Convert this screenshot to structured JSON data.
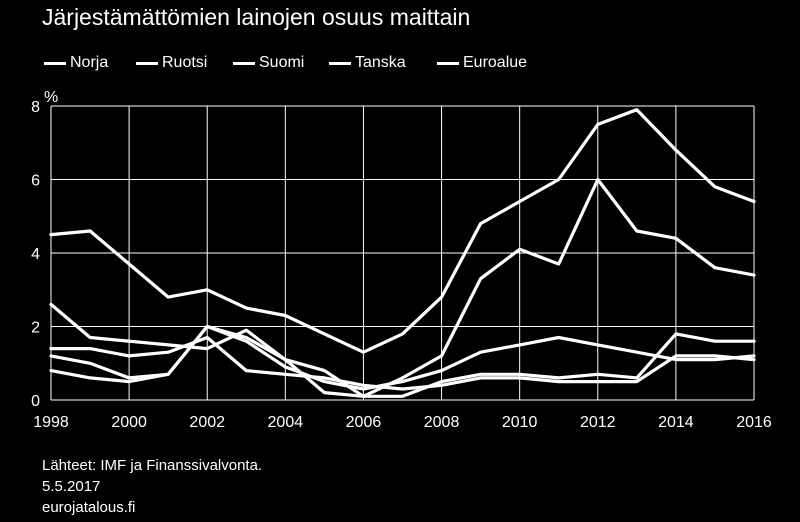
{
  "chart_data": {
    "type": "line",
    "title": "Järjestämättömien lainojen osuus maittain",
    "ylabel": "%",
    "xlabel": "",
    "xlim": [
      1998,
      2016
    ],
    "ylim": [
      0,
      8
    ],
    "x_ticks": [
      "1998",
      "2000",
      "2002",
      "2004",
      "2006",
      "2008",
      "2010",
      "2012",
      "2014",
      "2016"
    ],
    "y_ticks": [
      "0",
      "2",
      "4",
      "6",
      "8"
    ],
    "legend_position": "top",
    "series": [
      {
        "name": "Norja",
        "points": [
          [
            1998,
            0.8
          ],
          [
            1999,
            0.6
          ],
          [
            2000,
            0.5
          ],
          [
            2001,
            0.7
          ],
          [
            2002,
            2.0
          ],
          [
            2003,
            1.6
          ],
          [
            2004,
            0.9
          ],
          [
            2005,
            0.5
          ],
          [
            2006,
            0.3
          ],
          [
            2007,
            0.5
          ],
          [
            2008,
            0.8
          ],
          [
            2009,
            1.3
          ],
          [
            2010,
            1.5
          ],
          [
            2011,
            1.7
          ],
          [
            2012,
            1.5
          ],
          [
            2013,
            1.3
          ],
          [
            2014,
            1.1
          ],
          [
            2015,
            1.1
          ],
          [
            2016,
            1.2
          ]
        ]
      },
      {
        "name": "Ruotsi",
        "points": [
          [
            1998,
            1.4
          ],
          [
            1999,
            1.4
          ],
          [
            2000,
            1.2
          ],
          [
            2001,
            1.3
          ],
          [
            2002,
            1.7
          ],
          [
            2003,
            0.8
          ],
          [
            2004,
            0.7
          ],
          [
            2005,
            0.6
          ],
          [
            2006,
            0.4
          ],
          [
            2007,
            0.3
          ],
          [
            2008,
            0.4
          ],
          [
            2009,
            0.6
          ],
          [
            2010,
            0.6
          ],
          [
            2011,
            0.5
          ],
          [
            2012,
            0.5
          ],
          [
            2013,
            0.5
          ],
          [
            2014,
            1.2
          ],
          [
            2015,
            1.2
          ],
          [
            2016,
            1.1
          ]
        ]
      },
      {
        "name": "Suomi",
        "points": [
          [
            1998,
            2.6
          ],
          [
            1999,
            1.7
          ],
          [
            2000,
            1.6
          ],
          [
            2001,
            1.5
          ],
          [
            2002,
            1.4
          ],
          [
            2003,
            1.9
          ],
          [
            2004,
            1.1
          ],
          [
            2005,
            0.2
          ],
          [
            2006,
            0.1
          ],
          [
            2007,
            0.1
          ],
          [
            2008,
            0.5
          ],
          [
            2009,
            0.7
          ],
          [
            2010,
            0.7
          ],
          [
            2011,
            0.6
          ],
          [
            2012,
            0.7
          ],
          [
            2013,
            0.6
          ],
          [
            2014,
            1.8
          ],
          [
            2015,
            1.6
          ],
          [
            2016,
            1.6
          ]
        ]
      },
      {
        "name": "Tanska",
        "points": [
          [
            1998,
            1.2
          ],
          [
            1999,
            1.0
          ],
          [
            2000,
            0.6
          ],
          [
            2001,
            0.7
          ],
          [
            2002,
            2.0
          ],
          [
            2003,
            1.7
          ],
          [
            2004,
            1.1
          ],
          [
            2005,
            0.8
          ],
          [
            2006,
            0.1
          ],
          [
            2007,
            0.6
          ],
          [
            2008,
            1.2
          ],
          [
            2009,
            3.3
          ],
          [
            2010,
            4.1
          ],
          [
            2011,
            3.7
          ],
          [
            2012,
            6.0
          ],
          [
            2013,
            4.6
          ],
          [
            2014,
            4.4
          ],
          [
            2015,
            3.6
          ],
          [
            2016,
            3.4
          ]
        ]
      },
      {
        "name": "Euroalue",
        "points": [
          [
            1998,
            4.5
          ],
          [
            1999,
            4.6
          ],
          [
            2000,
            3.7
          ],
          [
            2001,
            2.8
          ],
          [
            2002,
            3.0
          ],
          [
            2003,
            2.5
          ],
          [
            2004,
            2.3
          ],
          [
            2005,
            1.8
          ],
          [
            2006,
            1.3
          ],
          [
            2007,
            1.8
          ],
          [
            2008,
            2.8
          ],
          [
            2009,
            4.8
          ],
          [
            2010,
            5.4
          ],
          [
            2011,
            6.0
          ],
          [
            2012,
            7.5
          ],
          [
            2013,
            7.9
          ],
          [
            2014,
            6.8
          ],
          [
            2015,
            5.8
          ],
          [
            2016,
            5.4
          ]
        ]
      }
    ]
  },
  "source": {
    "line1": "Lähteet: IMF ja Finanssivalvonta.",
    "line2": "5.5.2017",
    "line3": "eurojatalous.fi"
  },
  "colors": {
    "background": "#000000",
    "lines": "#ffffff"
  }
}
